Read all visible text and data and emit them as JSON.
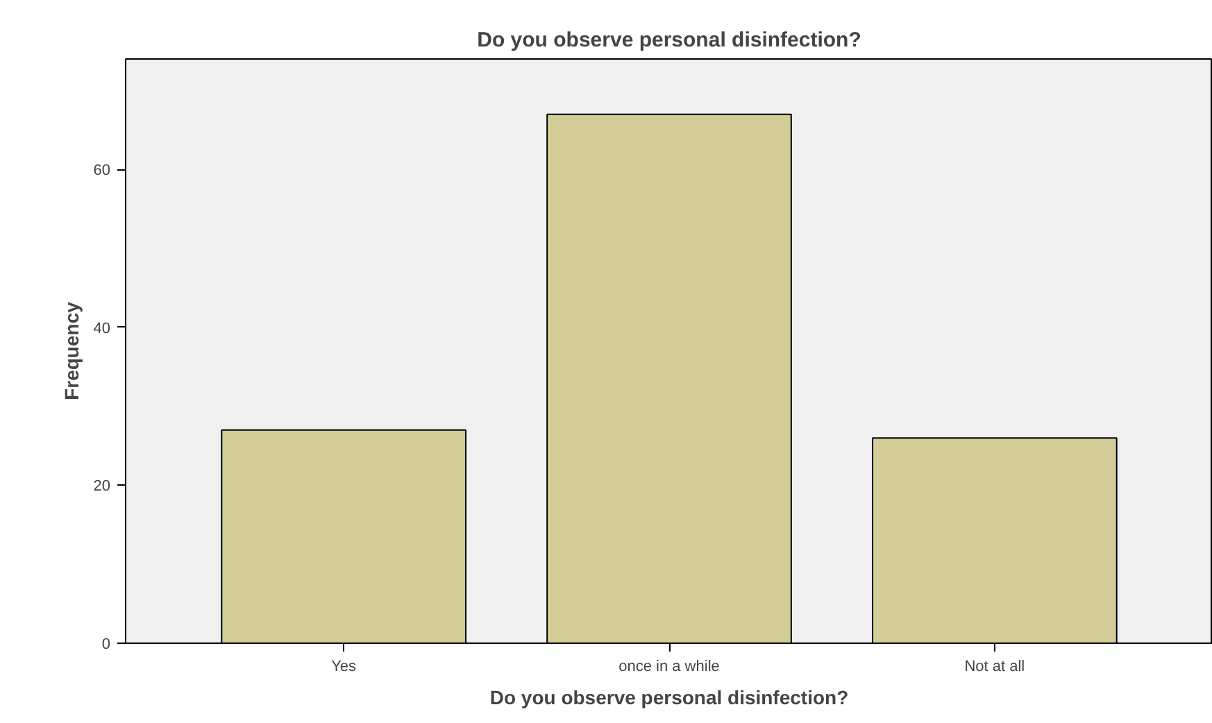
{
  "chart_data": {
    "type": "bar",
    "title": "Do you observe personal disinfection?",
    "xlabel": "Do you observe personal disinfection?",
    "ylabel": "Frequency",
    "categories": [
      "Yes",
      "once in a while",
      "Not at all"
    ],
    "series": [
      {
        "color": "#d3ce98",
        "values": [
          27,
          67,
          26
        ]
      }
    ],
    "ylim": [
      0,
      74
    ],
    "yticks": [
      0,
      20,
      40,
      60
    ]
  }
}
